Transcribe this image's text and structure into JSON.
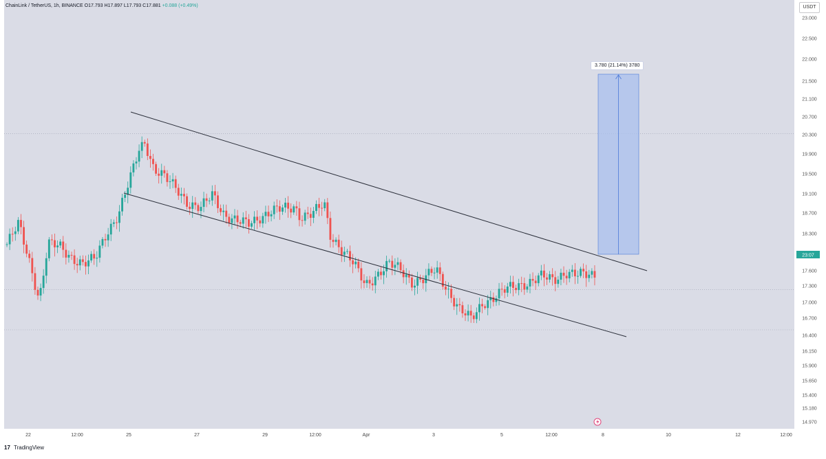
{
  "header": {
    "symbol": "ChainLink / TetherUS, 1h, BINANCE",
    "open": "O17.793",
    "high": "H17.897",
    "low": "L17.793",
    "close": "C17.881",
    "change": "+0.088 (+0.49%)"
  },
  "quote_currency": "USDT",
  "price_tag": "23:07",
  "measurement": {
    "label": "3.780 (21.14%) 3780"
  },
  "footer": {
    "logo": "17",
    "brand": "TradingView"
  },
  "colors": {
    "background": "#dadce6",
    "up": "#26a69a",
    "down": "#ef5350",
    "price_tag": "#26a69a",
    "measure_fill": "#a9c0ee",
    "measure_line": "#4a78d8"
  },
  "chart_data": {
    "type": "candlestick",
    "title": "ChainLink / TetherUS, 1h, BINANCE",
    "y_axis": {
      "ticks": [
        23.0,
        22.5,
        22.0,
        21.5,
        21.1,
        20.7,
        20.3,
        19.9,
        19.5,
        19.1,
        18.7,
        18.3,
        17.6,
        17.3,
        17.0,
        16.7,
        16.4,
        16.15,
        15.9,
        15.65,
        15.4,
        15.18,
        14.97
      ],
      "tick_labels": [
        "23.000",
        "22.500",
        "22.000",
        "21.500",
        "21.100",
        "20.700",
        "20.300",
        "19.900",
        "19.500",
        "19.100",
        "18.700",
        "18.300",
        "17.600",
        "17.300",
        "17.000",
        "16.700",
        "16.400",
        "16.150",
        "15.900",
        "15.650",
        "15.400",
        "15.180",
        "14.970"
      ]
    },
    "x_axis": {
      "tick_labels": [
        "22",
        "12:00",
        "25",
        "27",
        "29",
        "12:00",
        "Apr",
        "3",
        "5",
        "12:00",
        "8",
        "10",
        "12",
        "12:00"
      ]
    },
    "approx_path": [
      [
        0,
        18.5
      ],
      [
        0.02,
        18.9
      ],
      [
        0.04,
        18.1
      ],
      [
        0.055,
        17.4
      ],
      [
        0.07,
        18.5
      ],
      [
        0.09,
        18.45
      ],
      [
        0.11,
        18.25
      ],
      [
        0.13,
        18.1
      ],
      [
        0.15,
        18.2
      ],
      [
        0.17,
        18.75
      ],
      [
        0.19,
        19.1
      ],
      [
        0.21,
        19.8
      ],
      [
        0.225,
        20.4
      ],
      [
        0.235,
        20.55
      ],
      [
        0.25,
        20.0
      ],
      [
        0.27,
        19.8
      ],
      [
        0.29,
        19.6
      ],
      [
        0.31,
        19.3
      ],
      [
        0.33,
        19.2
      ],
      [
        0.35,
        19.5
      ],
      [
        0.37,
        19.1
      ],
      [
        0.39,
        18.95
      ],
      [
        0.41,
        18.9
      ],
      [
        0.43,
        19.05
      ],
      [
        0.45,
        19.15
      ],
      [
        0.47,
        19.2
      ],
      [
        0.49,
        19.25
      ],
      [
        0.5,
        19.05
      ],
      [
        0.52,
        19.1
      ],
      [
        0.54,
        19.3
      ],
      [
        0.55,
        18.7
      ],
      [
        0.57,
        18.4
      ],
      [
        0.59,
        18.1
      ],
      [
        0.61,
        17.7
      ],
      [
        0.63,
        17.9
      ],
      [
        0.65,
        18.1
      ],
      [
        0.67,
        18.0
      ],
      [
        0.69,
        17.75
      ],
      [
        0.71,
        17.8
      ],
      [
        0.73,
        18.0
      ],
      [
        0.75,
        17.6
      ],
      [
        0.77,
        17.2
      ],
      [
        0.79,
        17.0
      ],
      [
        0.81,
        17.35
      ],
      [
        0.83,
        17.45
      ],
      [
        0.85,
        17.6
      ],
      [
        0.87,
        17.7
      ],
      [
        0.89,
        17.75
      ],
      [
        0.91,
        17.85
      ],
      [
        0.93,
        17.8
      ],
      [
        0.95,
        17.95
      ],
      [
        0.97,
        17.88
      ],
      [
        1.0,
        17.9
      ]
    ],
    "annotations": [
      {
        "type": "channel-upper-line"
      },
      {
        "type": "channel-lower-line"
      },
      {
        "type": "price-range",
        "from": 17.88,
        "to": 21.66,
        "label": "3.780 (21.14%) 3780"
      }
    ],
    "reference_levels": [
      20.7,
      17.6,
      16.8
    ]
  }
}
